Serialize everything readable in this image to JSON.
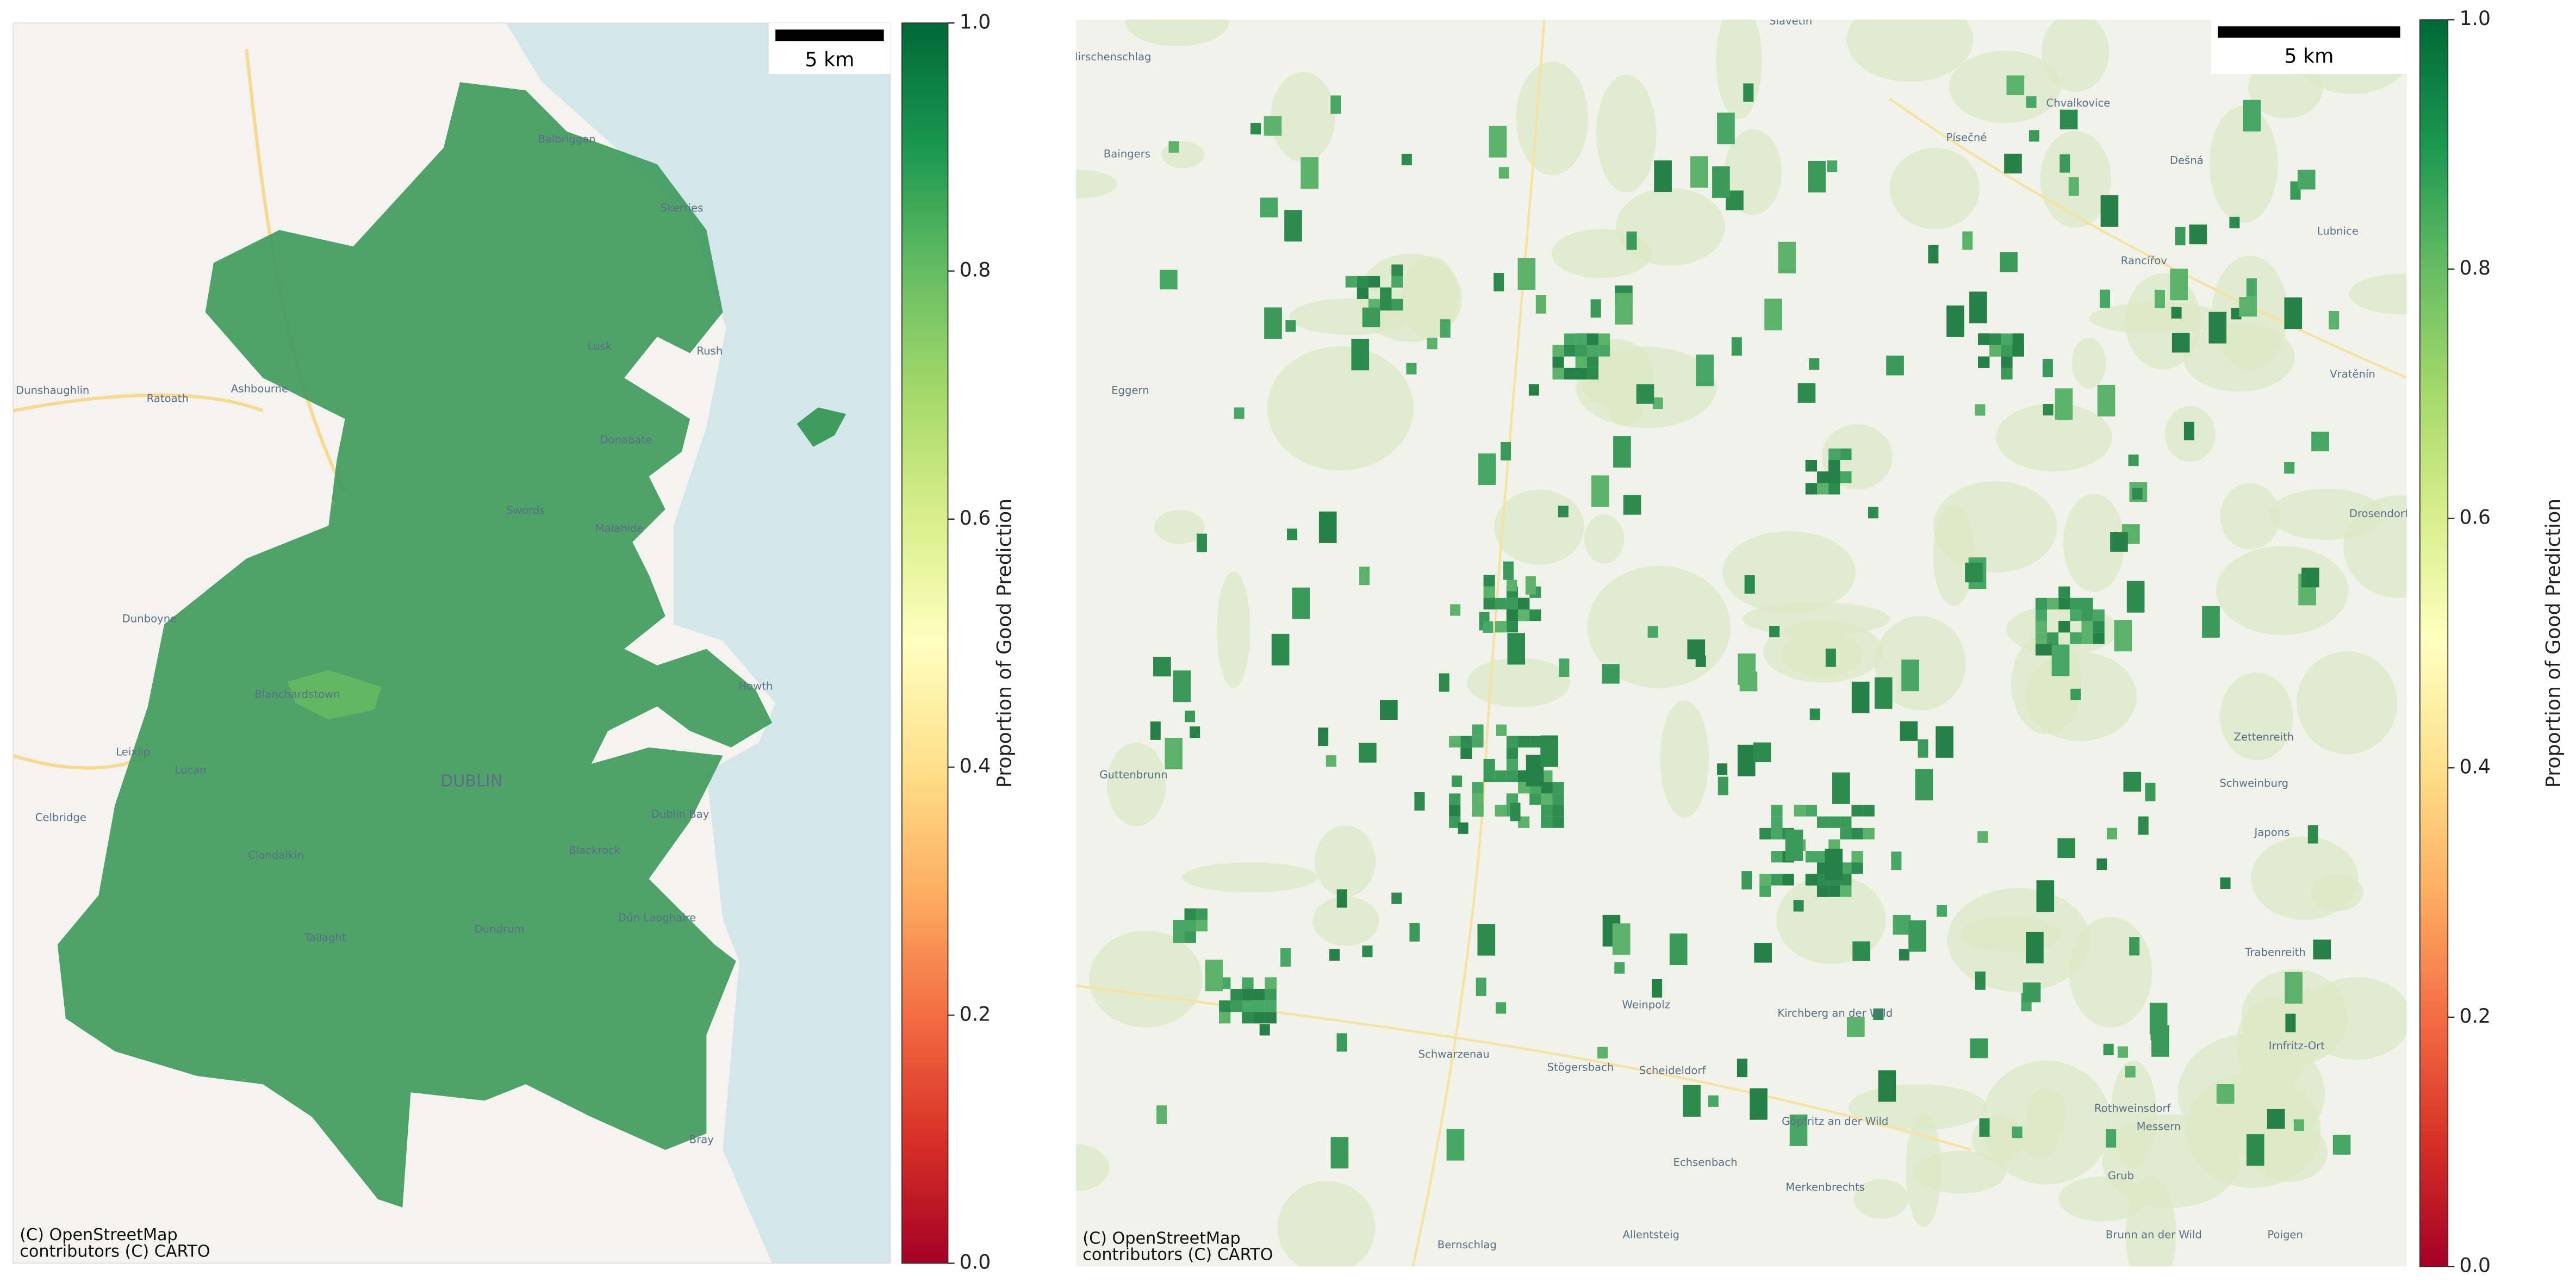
{
  "panels": [
    {
      "scale_bar": "5 km",
      "attribution": [
        "(C) OpenStreetMap",
        "contributors (C) CARTO"
      ],
      "colorbar": {
        "label": "Proportion of Good Prediction",
        "ticks": [
          {
            "value": 0,
            "label": "0.0"
          },
          {
            "value": 0.2,
            "label": "0.2"
          },
          {
            "value": 0.4,
            "label": "0.4"
          },
          {
            "value": 0.6,
            "label": "0.6"
          },
          {
            "value": 0.8,
            "label": "0.8"
          },
          {
            "value": 1,
            "label": "1.0"
          }
        ],
        "lim": [
          0,
          1
        ]
      },
      "place_labels": [
        "Balbriggan",
        "Skerries",
        "Lusk",
        "Rush",
        "Donabate",
        "Swords",
        "Malahide",
        "Dunshaughlin",
        "Ratoath",
        "Ashbourne",
        "Dunboyne",
        "Blanchardstown",
        "Leixlip",
        "Lucan",
        "Celbridge",
        "DUBLIN",
        "Dublin Bay",
        "Howth",
        "Clondalkin",
        "Tallaght",
        "Dundrum",
        "Blackrock",
        "Dún Laoghaire",
        "Bray"
      ]
    },
    {
      "scale_bar": "5 km",
      "attribution": [
        "(C) OpenStreetMap",
        "contributors (C) CARTO"
      ],
      "colorbar": {
        "label": "Proportion of Good Prediction",
        "ticks": [
          {
            "value": 0,
            "label": "0.0"
          },
          {
            "value": 0.2,
            "label": "0.2"
          },
          {
            "value": 0.4,
            "label": "0.4"
          },
          {
            "value": 0.6,
            "label": "0.6"
          },
          {
            "value": 0.8,
            "label": "0.8"
          },
          {
            "value": 1,
            "label": "1.0"
          }
        ],
        "lim": [
          0,
          1
        ]
      },
      "place_labels": [
        "Hirschenschlag",
        "Slavětín",
        "Chvalkovice",
        "Písečné",
        "Dešná",
        "Baingers",
        "Rancířov",
        "Lubnice",
        "Eggern",
        "Vratěnín",
        "Drosendorf",
        "Guttenbrunn",
        "Zettenreith",
        "Schweinburg",
        "Japons",
        "Weinpolz",
        "Schwarzenau",
        "Stögersbach",
        "Scheideldorf",
        "Kirchberg an der Wild",
        "Göpfritz an der Wild",
        "Echsenbach",
        "Merkenbrechts",
        "Allentsteig",
        "Bernschlag",
        "Grub",
        "Messern",
        "Brunn an der Wild",
        "Poigen",
        "Trabenreith",
        "Irnfritz-Ort",
        "Rothweinsdorf"
      ]
    }
  ]
}
